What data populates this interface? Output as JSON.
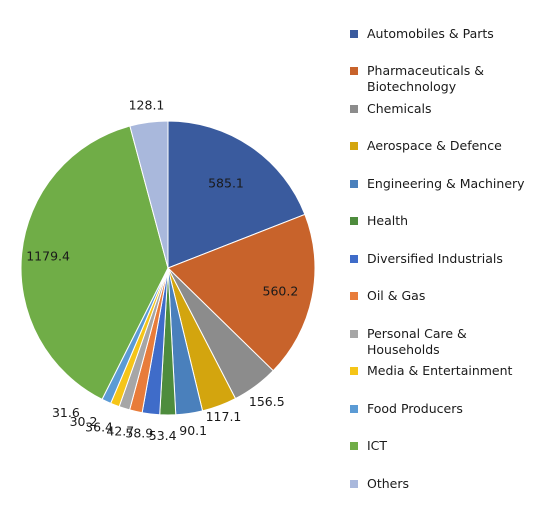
{
  "chart_data": {
    "type": "pie",
    "title": "",
    "categories": [
      "Automobiles & Parts",
      "Pharmaceuticals & Biotechnology",
      "Chemicals",
      "Aerospace & Defence",
      "Engineering & Machinery",
      "Health",
      "Diversified Industrials",
      "Oil & Gas",
      "Personal Care & Households",
      "Media & Entertainment",
      "Food Producers",
      "ICT",
      "Others"
    ],
    "values": [
      585.1,
      560.2,
      156.5,
      117.1,
      90.1,
      53.4,
      58.9,
      42.7,
      36.4,
      30.2,
      31.6,
      1179.4,
      128.1
    ],
    "data_labels": [
      "585.1",
      "560.2",
      "156.5",
      "117.1",
      "90.1",
      "53.4",
      "58.9",
      "42.7",
      "36.4",
      "30.2",
      "31.6",
      "1179.4",
      "128.1"
    ],
    "colors": [
      "#3A5B9E",
      "#C8632B",
      "#8C8C8C",
      "#D3A50E",
      "#4A80BC",
      "#4E8C3D",
      "#3F6CC9",
      "#E87C3A",
      "#A6A6A6",
      "#F5C518",
      "#5B9BD5",
      "#70AD47",
      "#A9B8DC"
    ],
    "legend_position": "right",
    "start_angle": "12 o'clock",
    "direction": "clockwise"
  }
}
